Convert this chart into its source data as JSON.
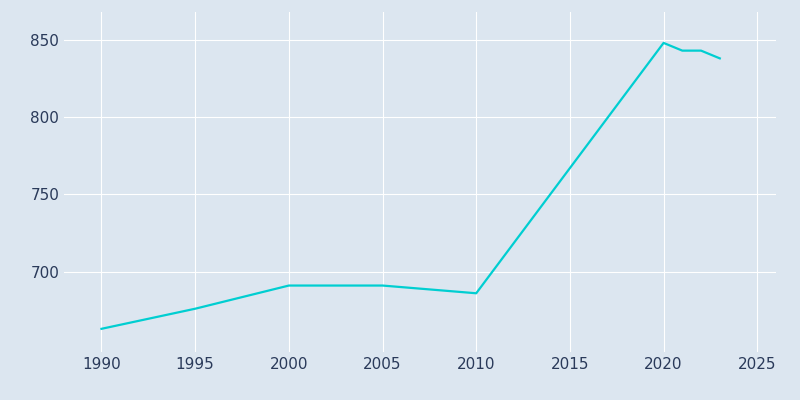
{
  "years": [
    1990,
    1995,
    2000,
    2005,
    2010,
    2020,
    2021,
    2022,
    2023
  ],
  "population": [
    663,
    676,
    691,
    691,
    686,
    848,
    843,
    843,
    838
  ],
  "line_color": "#00CED1",
  "background_color": "#dce6f0",
  "grid_color": "#ffffff",
  "text_color": "#2a3a5a",
  "xlim": [
    1988,
    2026
  ],
  "ylim": [
    648,
    868
  ],
  "xticks": [
    1990,
    1995,
    2000,
    2005,
    2010,
    2015,
    2020,
    2025
  ],
  "yticks": [
    700,
    750,
    800,
    850
  ],
  "linewidth": 1.6
}
